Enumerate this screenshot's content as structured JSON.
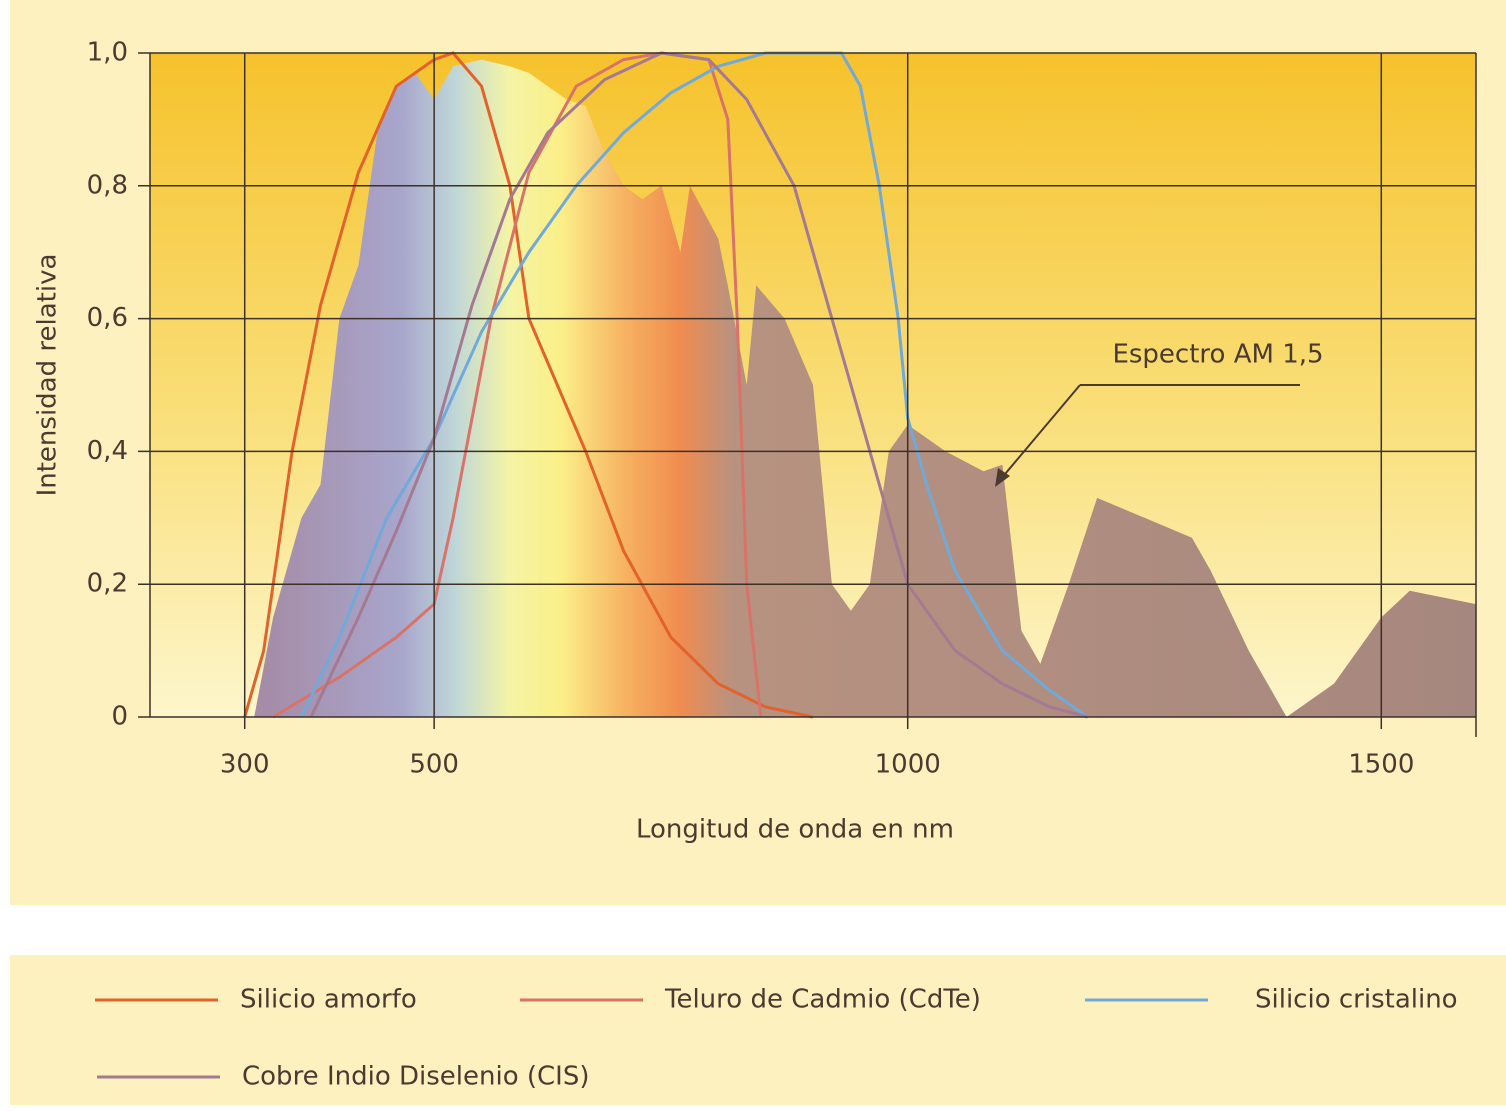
{
  "chart_data": {
    "type": "line",
    "xlabel": "Longitud de onda en nm",
    "ylabel": "Intensidad relativa",
    "xlim": [
      200,
      1600
    ],
    "ylim": [
      0,
      1
    ],
    "xticks": [
      300,
      500,
      1000,
      1500
    ],
    "yticks": [
      0,
      {
        "value": 0.2,
        "label": "0,2"
      },
      {
        "value": 0.4,
        "label": "0,4"
      },
      {
        "value": 0.6,
        "label": "0,6"
      },
      {
        "value": 0.8,
        "label": "0,8"
      },
      {
        "value": 1,
        "label": "1,0"
      }
    ],
    "grid": true,
    "series": [
      {
        "name": "Espectro AM 1,5",
        "color": "#a6877f",
        "fill": true,
        "x": [
          310,
          330,
          360,
          380,
          400,
          420,
          440,
          460,
          480,
          500,
          520,
          550,
          580,
          600,
          620,
          640,
          660,
          680,
          700,
          720,
          740,
          760,
          770,
          800,
          810,
          830,
          840,
          870,
          900,
          920,
          940,
          960,
          980,
          1000,
          1040,
          1080,
          1100,
          1120,
          1140,
          1170,
          1200,
          1250,
          1300,
          1320,
          1360,
          1400,
          1450,
          1500,
          1530,
          1600
        ],
        "values": [
          0,
          0.15,
          0.3,
          0.35,
          0.6,
          0.68,
          0.88,
          0.95,
          0.97,
          0.93,
          0.98,
          0.99,
          0.98,
          0.97,
          0.95,
          0.93,
          0.92,
          0.85,
          0.8,
          0.78,
          0.8,
          0.7,
          0.8,
          0.72,
          0.65,
          0.5,
          0.65,
          0.6,
          0.5,
          0.2,
          0.16,
          0.2,
          0.4,
          0.44,
          0.4,
          0.37,
          0.38,
          0.13,
          0.08,
          0.2,
          0.33,
          0.3,
          0.27,
          0.22,
          0.1,
          0,
          0.05,
          0.15,
          0.19,
          0.17
        ]
      },
      {
        "name": "Silicio amorfo",
        "color": "#e2622c",
        "x": [
          300,
          320,
          350,
          380,
          420,
          460,
          500,
          520,
          550,
          580,
          600,
          660,
          700,
          750,
          800,
          850,
          900
        ],
        "values": [
          0,
          0.1,
          0.4,
          0.62,
          0.82,
          0.95,
          0.99,
          1,
          0.95,
          0.8,
          0.6,
          0.4,
          0.25,
          0.12,
          0.05,
          0.015,
          0
        ]
      },
      {
        "name": "Teluro de Cadmio (CdTe)",
        "color": "#d9736a",
        "x": [
          330,
          400,
          460,
          500,
          520,
          560,
          600,
          650,
          700,
          740,
          790,
          810,
          820,
          830,
          845
        ],
        "values": [
          0,
          0.06,
          0.12,
          0.17,
          0.3,
          0.6,
          0.82,
          0.95,
          0.99,
          1,
          0.99,
          0.9,
          0.6,
          0.2,
          0
        ]
      },
      {
        "name": "Silicio cristalino",
        "color": "#71a9d9",
        "x": [
          360,
          400,
          450,
          500,
          550,
          600,
          650,
          700,
          750,
          800,
          850,
          930,
          950,
          970,
          990,
          1000,
          1020,
          1050,
          1100,
          1150,
          1190
        ],
        "values": [
          0,
          0.12,
          0.3,
          0.42,
          0.58,
          0.7,
          0.8,
          0.88,
          0.94,
          0.98,
          1,
          1,
          0.95,
          0.8,
          0.6,
          0.45,
          0.35,
          0.22,
          0.1,
          0.04,
          0
        ]
      },
      {
        "name": "Cobre Indio Diselenio (CIS)",
        "color": "#a47a92",
        "x": [
          370,
          420,
          460,
          500,
          540,
          580,
          620,
          680,
          740,
          790,
          830,
          880,
          920,
          950,
          1000,
          1050,
          1100,
          1150,
          1190
        ],
        "values": [
          0,
          0.15,
          0.28,
          0.42,
          0.62,
          0.78,
          0.88,
          0.96,
          1,
          0.99,
          0.93,
          0.8,
          0.6,
          0.45,
          0.2,
          0.1,
          0.05,
          0.015,
          0
        ]
      }
    ]
  }
}
